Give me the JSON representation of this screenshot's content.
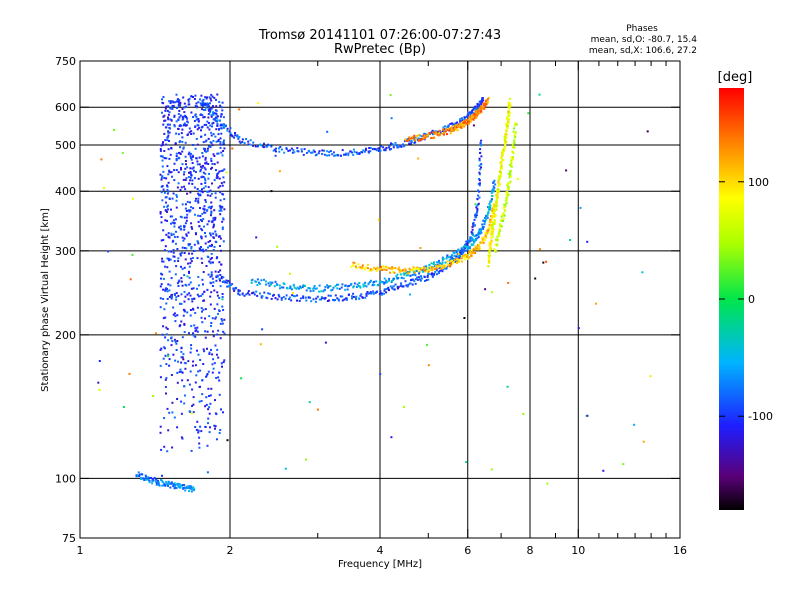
{
  "chart_data": {
    "type": "scatter",
    "title": "Tromsø 20141101 07:26:00-07:27:43",
    "subtitle": "RwPretec (Bp)",
    "xlabel": "Frequency [MHz]",
    "ylabel": "Stationary phase Virtual Height [km]",
    "x_scale": "log",
    "y_scale": "log",
    "xlim": [
      1,
      16
    ],
    "ylim": [
      75,
      750
    ],
    "x_ticks": [
      1,
      2,
      4,
      6,
      8,
      10,
      16
    ],
    "x_tick_labels": [
      "1",
      "2",
      "4",
      "6",
      "8",
      "10",
      "16"
    ],
    "x_minor_ticks": [
      3,
      5,
      7,
      9,
      11,
      12,
      13,
      14,
      15
    ],
    "y_ticks": [
      75,
      100,
      200,
      300,
      400,
      500,
      600,
      750
    ],
    "y_tick_labels": [
      "75",
      "100",
      "200",
      "300",
      "400",
      "500",
      "600",
      "750"
    ],
    "grid": true,
    "vertical_grid_lines": [
      2,
      4,
      6,
      8,
      10
    ],
    "horizontal_grid_lines": [
      100,
      200,
      300,
      400,
      500,
      600
    ],
    "stats": {
      "heading": "Phases",
      "line_o": "mean, sd,O: -80.7, 15.4",
      "line_x": "mean, sd,X: 106.6, 27.2"
    },
    "colorbar": {
      "label": "[deg]",
      "range": [
        -180,
        180
      ],
      "ticks": [
        100,
        0,
        -100
      ],
      "tick_labels": [
        "100",
        "0",
        "-100"
      ],
      "colormap": "rainbow"
    },
    "traces": [
      {
        "kind": "f_region_echoes",
        "fmin": 1.45,
        "fmax": 1.95,
        "hmin": 110,
        "hmax": 640,
        "phase": -100
      },
      {
        "kind": "trace",
        "f": [
          1.75,
          1.9,
          2.1,
          2.5,
          3.0,
          3.5,
          4.0,
          4.5,
          5.0,
          5.5,
          6.0,
          6.3,
          6.45
        ],
        "h": [
          620,
          560,
          510,
          490,
          480,
          482,
          490,
          505,
          525,
          545,
          575,
          600,
          625
        ],
        "phase": -90
      },
      {
        "kind": "trace",
        "f": [
          1.9,
          2.1,
          2.5,
          3.0,
          3.5,
          4.0,
          4.5,
          5.0,
          5.5,
          5.8,
          6.1,
          6.3,
          6.4
        ],
        "h": [
          265,
          245,
          240,
          238,
          240,
          245,
          255,
          265,
          280,
          295,
          320,
          380,
          520
        ],
        "phase": -95
      },
      {
        "kind": "trace",
        "f": [
          2.2,
          2.6,
          3.0,
          3.5,
          4.0,
          4.5,
          5.0,
          5.5,
          6.0,
          6.3,
          6.6,
          6.8
        ],
        "h": [
          260,
          252,
          250,
          252,
          258,
          266,
          276,
          290,
          305,
          325,
          360,
          420
        ],
        "phase": -60
      },
      {
        "kind": "trace",
        "f": [
          3.5,
          4.0,
          4.5,
          5.0,
          5.5,
          6.0,
          6.3,
          6.6,
          6.8
        ],
        "h": [
          280,
          275,
          272,
          275,
          282,
          292,
          305,
          330,
          380
        ],
        "phase": 110
      },
      {
        "kind": "trace",
        "f": [
          4.5,
          5.0,
          5.5,
          5.8,
          6.0,
          6.2,
          6.4,
          6.6
        ],
        "h": [
          512,
          522,
          535,
          548,
          560,
          575,
          595,
          620
        ],
        "phase": 130
      },
      {
        "kind": "trace",
        "f": [
          6.6,
          6.7,
          6.8,
          6.9,
          7.0,
          7.1,
          7.2,
          7.3
        ],
        "h": [
          280,
          320,
          360,
          400,
          450,
          500,
          550,
          620
        ],
        "phase": 80
      },
      {
        "kind": "trace",
        "f": [
          6.8,
          7.0,
          7.2,
          7.35,
          7.5
        ],
        "h": [
          300,
          340,
          390,
          460,
          560
        ],
        "phase": 60
      },
      {
        "kind": "trace",
        "f": [
          1.3,
          1.4,
          1.5,
          1.6,
          1.7
        ],
        "h": [
          102,
          99,
          97,
          96,
          95
        ],
        "phase": -70
      }
    ]
  }
}
